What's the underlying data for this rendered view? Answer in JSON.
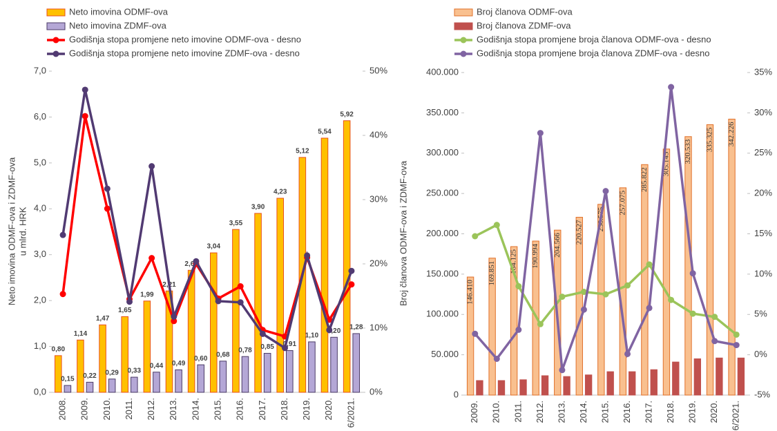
{
  "chart_data": [
    {
      "type": "combo",
      "y_label": [
        "Neto imovina ODMF-ova i ZDMF-ova",
        "u mlrd. HRK"
      ],
      "categories": [
        "2008.",
        "2009.",
        "2010.",
        "2011.",
        "2012.",
        "2013.",
        "2014.",
        "2015.",
        "2016.",
        "2017.",
        "2018.",
        "2019.",
        "2020.",
        "6/2021."
      ],
      "series": [
        {
          "name": "Neto imovina ODMF-ova",
          "type": "bar",
          "color": "#ffc000",
          "edge": "#e8501e",
          "values": [
            0.8,
            1.14,
            1.47,
            1.65,
            1.99,
            2.21,
            2.66,
            3.04,
            3.55,
            3.9,
            4.23,
            5.12,
            5.54,
            5.92
          ],
          "value_labels": [
            "0,80",
            "1,14",
            "1,47",
            "1,65",
            "1,99",
            "2,21",
            "2,66",
            "3,04",
            "3,55",
            "3,90",
            "4,23",
            "5,12",
            "5,54",
            "5,92"
          ]
        },
        {
          "name": "Neto imovina ZDMF-ova",
          "type": "bar",
          "color": "#b4a7d6",
          "edge": "#4a3a66",
          "values": [
            0.15,
            0.22,
            0.29,
            0.33,
            0.44,
            0.49,
            0.6,
            0.68,
            0.78,
            0.85,
            0.91,
            1.1,
            1.2,
            1.28
          ],
          "value_labels": [
            "0,15",
            "0,22",
            "0,29",
            "0,33",
            "0,44",
            "0,49",
            "0,60",
            "0,68",
            "0,78",
            "0,85",
            "0,91",
            "1,10",
            "1,20",
            "1,28"
          ]
        },
        {
          "name": "Godišnja stopa promjene neto imovine ODMF-ova - desno",
          "type": "line",
          "axis": "y2",
          "color": "#ff0000",
          "values": [
            15.3,
            43.0,
            28.6,
            14.5,
            20.9,
            11.1,
            20.0,
            14.6,
            16.5,
            9.7,
            8.7,
            21.0,
            11.3,
            16.8
          ]
        },
        {
          "name": "Godišnja stopa promjene neto imovine ZDMF-ova - desno",
          "type": "line",
          "axis": "y2",
          "color": "#513a72",
          "values": [
            24.5,
            47.1,
            31.7,
            14.1,
            35.2,
            11.8,
            20.4,
            14.2,
            14.0,
            9.1,
            6.9,
            21.3,
            9.7,
            18.9
          ]
        }
      ],
      "ylim": [
        0,
        7
      ],
      "yticks": [
        {
          "value": 0,
          "label": "0,0"
        },
        {
          "value": 1,
          "label": "1,0"
        },
        {
          "value": 2,
          "label": "2,0"
        },
        {
          "value": 3,
          "label": "3,0"
        },
        {
          "value": 4,
          "label": "4,0"
        },
        {
          "value": 5,
          "label": "5,0"
        },
        {
          "value": 6,
          "label": "6,0"
        },
        {
          "value": 7,
          "label": "7,0"
        }
      ],
      "y2lim": [
        0,
        50
      ],
      "y2ticks": [
        {
          "value": 0,
          "label": "0%"
        },
        {
          "value": 10,
          "label": "10%"
        },
        {
          "value": 20,
          "label": "20%"
        },
        {
          "value": 30,
          "label": "30%"
        },
        {
          "value": 40,
          "label": "40%"
        },
        {
          "value": 50,
          "label": "50%"
        }
      ]
    },
    {
      "type": "combo",
      "y_label": [
        "Broj članova ODMF-ova i ZDMF-ova"
      ],
      "categories": [
        "2009.",
        "2010.",
        "2011.",
        "2012.",
        "2013.",
        "2014.",
        "2015.",
        "2016.",
        "2017.",
        "2018.",
        "2019.",
        "2020.",
        "6/2021."
      ],
      "series": [
        {
          "name": "Broj članova ODMF-ova",
          "type": "bar",
          "color": "#f9c08f",
          "edge": "#e0702a",
          "values": [
            146410,
            169851,
            184125,
            190994,
            204566,
            220527,
            236575,
            257075,
            285822,
            305145,
            320533,
            335325,
            342226
          ],
          "value_labels": [
            "146.410",
            "169.851",
            "184.125",
            "190.994",
            "204.566",
            "220.527",
            "236.575",
            "257.075",
            "285.822",
            "305.145",
            "320.533",
            "335.325",
            "342.226"
          ]
        },
        {
          "name": "Broj članova ZDMF-ova",
          "type": "bar",
          "color": "#c0504d",
          "edge": "#c0504d",
          "values": [
            18000,
            18000,
            19000,
            24000,
            23000,
            25000,
            29000,
            29000,
            31500,
            41000,
            45000,
            46000,
            46000
          ]
        },
        {
          "name": "Godišnja stopa promjene broja članova ODMF-ova - desno",
          "type": "line",
          "axis": "y2",
          "color": "#9bc45a",
          "values": [
            14.7,
            16.1,
            8.5,
            3.8,
            7.2,
            7.8,
            7.5,
            8.6,
            11.2,
            6.8,
            5.1,
            4.7,
            2.5
          ]
        },
        {
          "name": "Godišnja stopa promjene broja članova ZDMF-ova - desno",
          "type": "line",
          "axis": "y2",
          "color": "#8064a2",
          "values": [
            2.6,
            -0.5,
            3.1,
            27.5,
            -1.9,
            5.6,
            20.3,
            0.1,
            5.8,
            33.2,
            10.1,
            1.7,
            1.2
          ]
        }
      ],
      "ylim": [
        0,
        400000
      ],
      "yticks": [
        0,
        {
          "value": 50000,
          "label": "50.000"
        },
        {
          "value": 100000,
          "label": "100.000"
        },
        {
          "value": 150000,
          "label": "150.000"
        },
        {
          "value": 200000,
          "label": "200.000"
        },
        {
          "value": 250000,
          "label": "250.000"
        },
        {
          "value": 300000,
          "label": "300.000"
        },
        {
          "value": 350000,
          "label": "350.000"
        },
        {
          "value": 400000,
          "label": "400.000"
        }
      ],
      "y2lim": [
        -5,
        35
      ],
      "y2ticks": [
        {
          "value": -5,
          "label": "-5%"
        },
        {
          "value": 0,
          "label": "0%"
        },
        {
          "value": 5,
          "label": "5%"
        },
        {
          "value": 10,
          "label": "10%"
        },
        {
          "value": 15,
          "label": "15%"
        },
        {
          "value": 20,
          "label": "20%"
        },
        {
          "value": 25,
          "label": "25%"
        },
        {
          "value": 30,
          "label": "30%"
        },
        {
          "value": 35,
          "label": "35%"
        }
      ]
    }
  ]
}
